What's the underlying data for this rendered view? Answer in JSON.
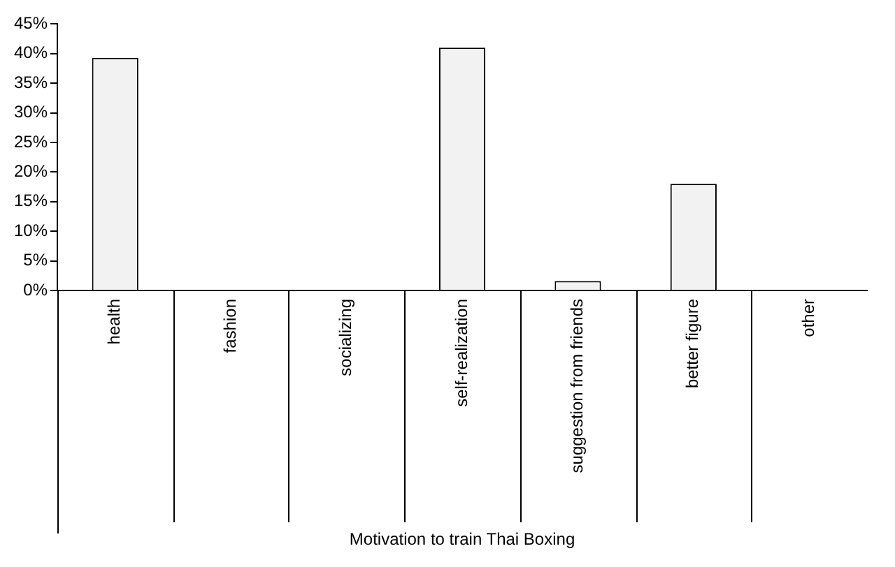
{
  "chart_data": {
    "type": "bar",
    "xlabel": "Motivation to train Thai Boxing",
    "categories": [
      "health",
      "fashion",
      "socializing",
      "self-realization",
      "suggestion from friends",
      "better figure",
      "other"
    ],
    "values": [
      39.3,
      0,
      0,
      41.0,
      1.6,
      18.0,
      0
    ],
    "color": "#f2f2f2",
    "ylim": [
      0,
      45
    ],
    "yticks": [
      {
        "value": 0,
        "label": "0%"
      },
      {
        "value": 5,
        "label": "5%"
      },
      {
        "value": 10,
        "label": "10%"
      },
      {
        "value": 15,
        "label": "15%"
      },
      {
        "value": 20,
        "label": "20%"
      },
      {
        "value": 25,
        "label": "25%"
      },
      {
        "value": 30,
        "label": "30%"
      },
      {
        "value": 35,
        "label": "35%"
      },
      {
        "value": 40,
        "label": "40%"
      },
      {
        "value": 45,
        "label": "45%"
      }
    ],
    "grid": false,
    "legend": false
  }
}
